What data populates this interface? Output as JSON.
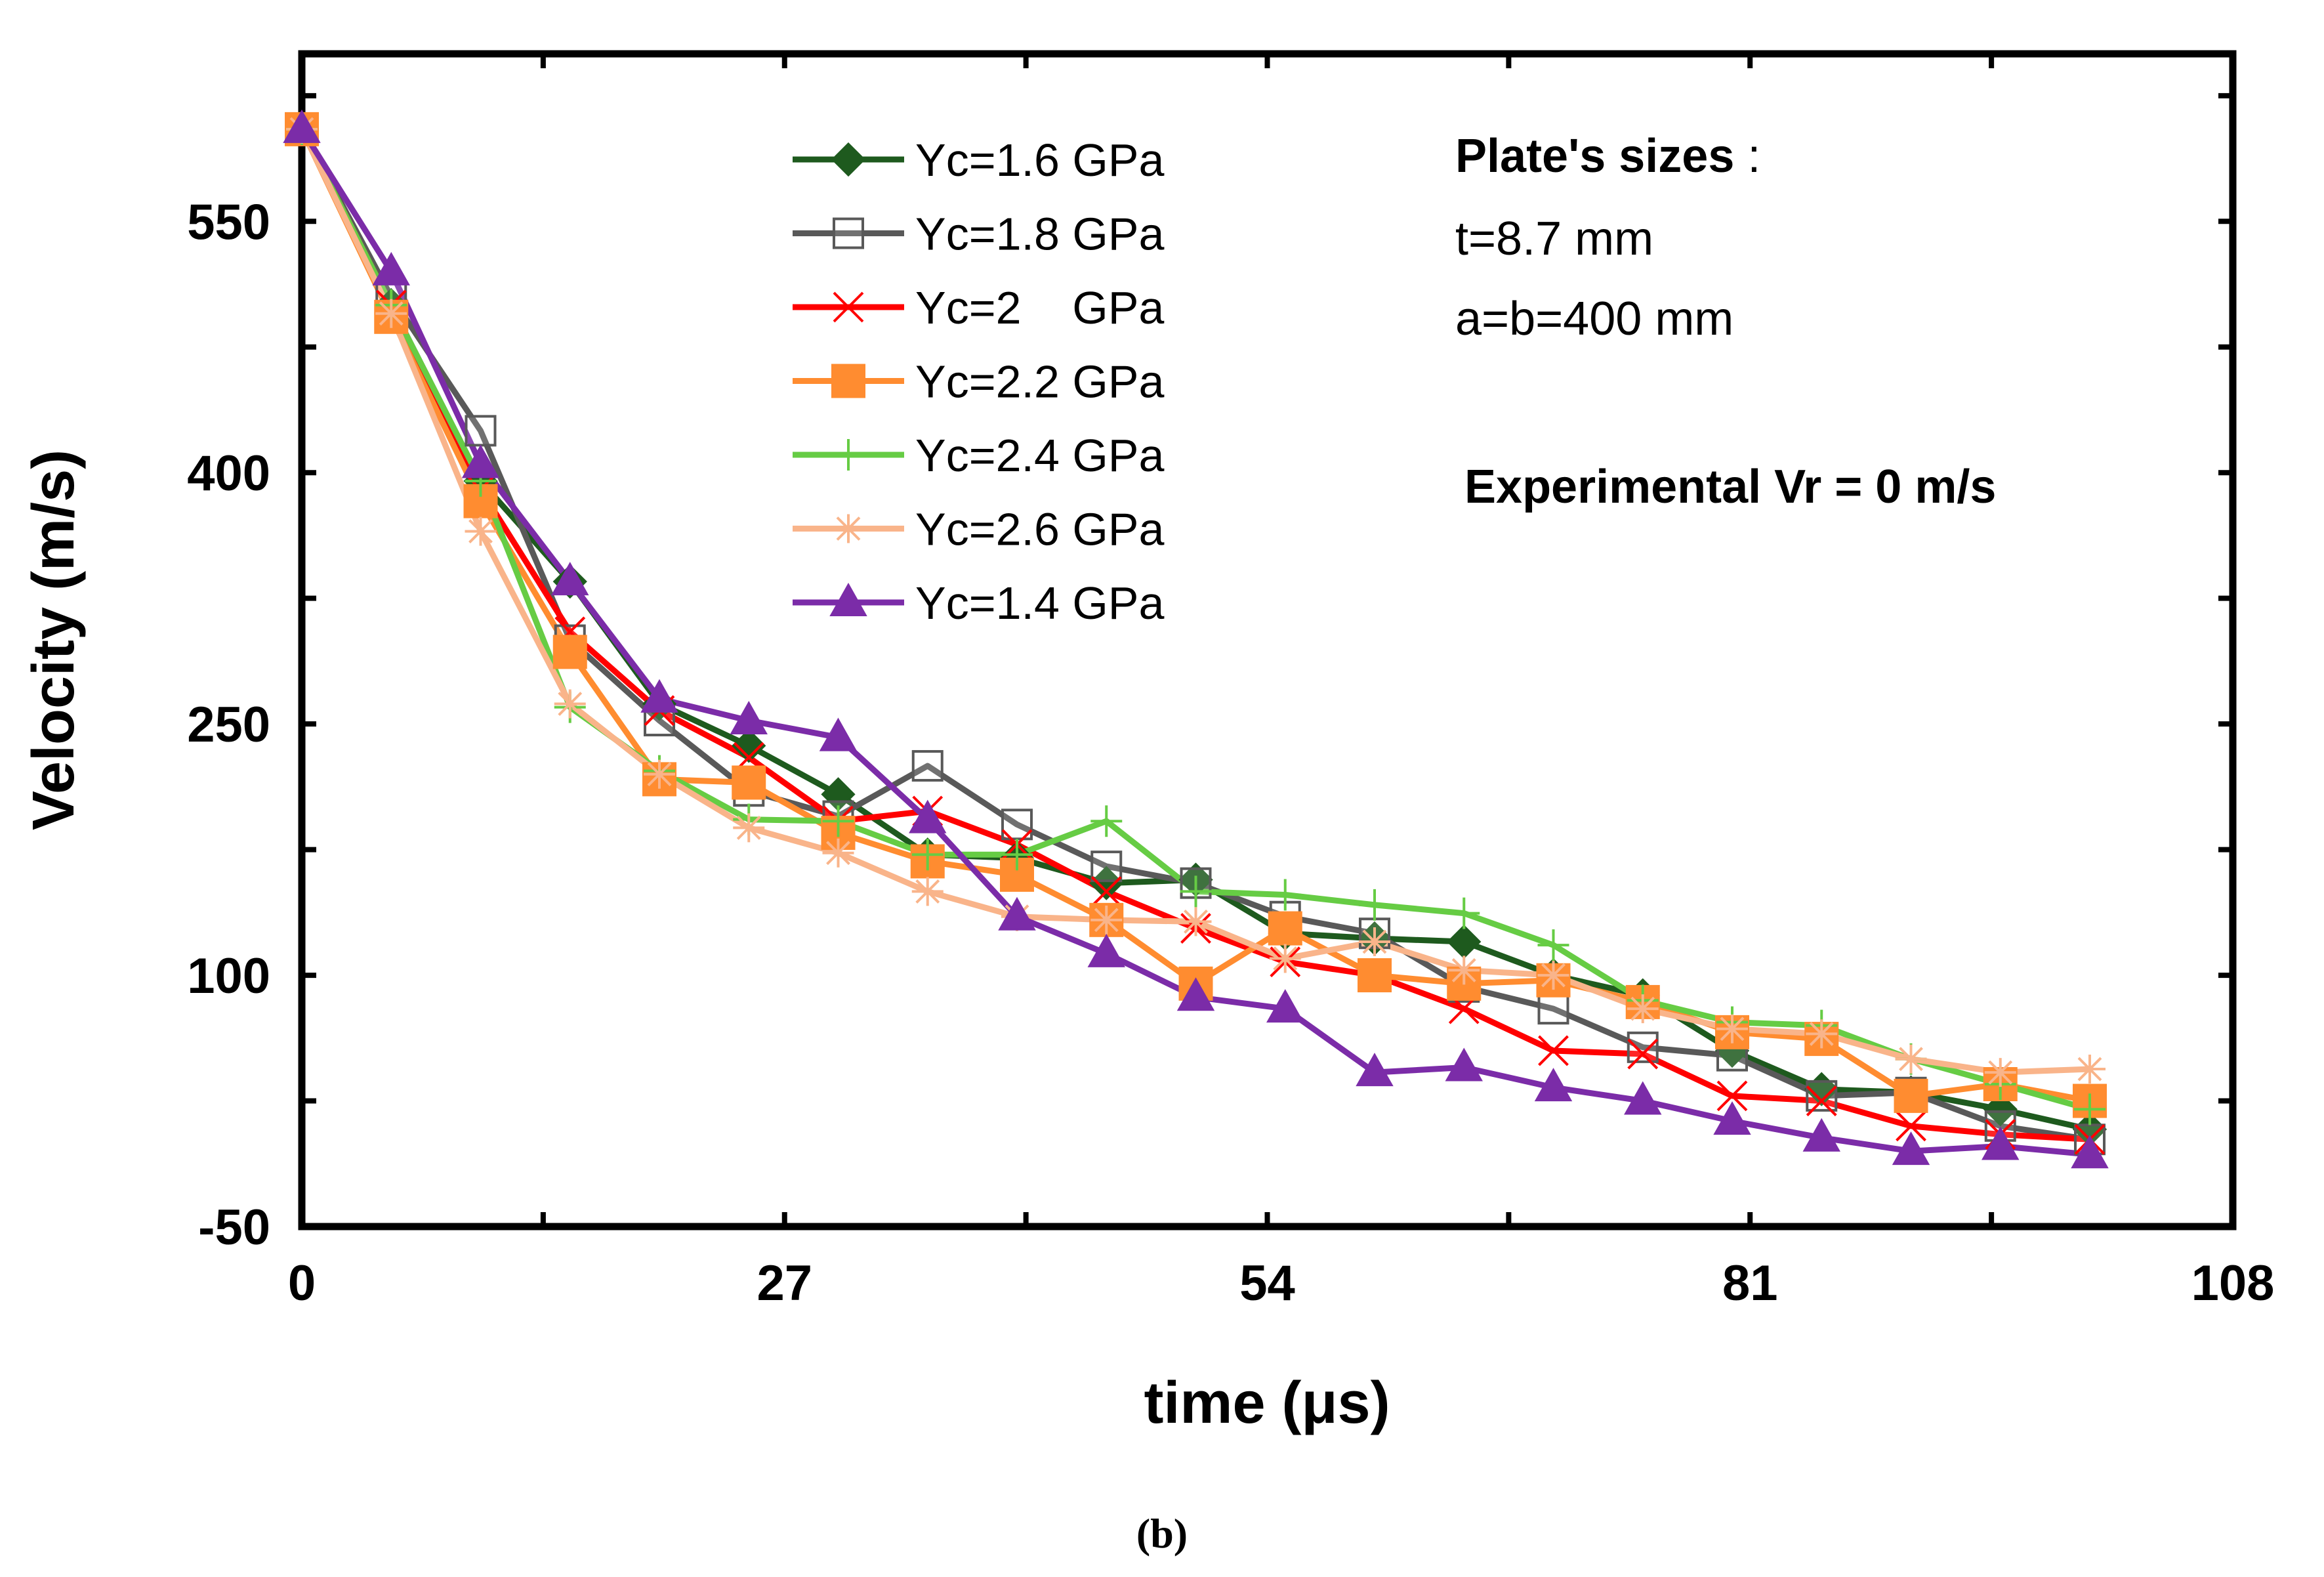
{
  "chart_data": {
    "type": "line",
    "title": "",
    "xlabel": "time (μs)",
    "ylabel": "Velocity (m/s)",
    "xlim": [
      0,
      108
    ],
    "ylim": [
      -50,
      650
    ],
    "xticks": [
      0,
      27,
      54,
      81,
      108
    ],
    "yticks": [
      -50,
      100,
      250,
      400,
      550
    ],
    "x": [
      0,
      5,
      10,
      15,
      20,
      25,
      30,
      35,
      40,
      45,
      50,
      55,
      60,
      65,
      70,
      75,
      80,
      85,
      90,
      95,
      100
    ],
    "series": [
      {
        "name": "Yc=1.6 GPa",
        "color": "#1e5a1e",
        "marker": "diamond-filled",
        "values": [
          605,
          500,
          395,
          335,
          262,
          237,
          208,
          172,
          170,
          155,
          157,
          125,
          122,
          120,
          100,
          88,
          55,
          32,
          30,
          20,
          8
        ]
      },
      {
        "name": "Yc=1.8 GPa",
        "color": "#595959",
        "marker": "square-open",
        "values": [
          605,
          505,
          425,
          300,
          252,
          210,
          195,
          225,
          190,
          165,
          155,
          135,
          125,
          93,
          80,
          57,
          52,
          28,
          30,
          10,
          2
        ]
      },
      {
        "name": "Yc=2    GPa",
        "color": "#ff0000",
        "marker": "x",
        "values": [
          605,
          500,
          390,
          305,
          258,
          230,
          192,
          198,
          178,
          150,
          128,
          108,
          100,
          80,
          55,
          53,
          28,
          25,
          10,
          5,
          2
        ]
      },
      {
        "name": "Yc=2.2 GPa",
        "color": "#ff8c30",
        "marker": "square-filled",
        "values": [
          605,
          493,
          383,
          293,
          217,
          215,
          185,
          168,
          160,
          133,
          95,
          128,
          100,
          95,
          97,
          84,
          66,
          62,
          28,
          35,
          25
        ]
      },
      {
        "name": "Yc=2.4 GPa",
        "color": "#66cc44",
        "marker": "plus",
        "values": [
          605,
          500,
          395,
          260,
          222,
          193,
          192,
          172,
          172,
          192,
          150,
          148,
          142,
          137,
          118,
          85,
          72,
          70,
          50,
          35,
          20
        ]
      },
      {
        "name": "Yc=2.6 GPa",
        "color": "#f9b48a",
        "marker": "asterisk",
        "values": [
          605,
          495,
          365,
          262,
          220,
          188,
          173,
          150,
          135,
          133,
          132,
          110,
          120,
          103,
          100,
          80,
          68,
          65,
          50,
          42,
          44
        ]
      },
      {
        "name": "Yc=1.4 GPa",
        "color": "#7b2ca8",
        "marker": "triangle-filled",
        "values": [
          605,
          520,
          405,
          335,
          265,
          252,
          242,
          193,
          135,
          113,
          87,
          80,
          42,
          45,
          33,
          25,
          13,
          3,
          -5,
          -2,
          -7
        ]
      }
    ],
    "legend_position": "top-center",
    "annotations": {
      "plate_title": "Plate's sizes",
      "plate_colon": " :",
      "thickness": "t=8.7 mm",
      "dimensions": "a=b=400 mm",
      "experimental": "Experimental Vr = 0 m/s"
    }
  },
  "caption": "(b)"
}
